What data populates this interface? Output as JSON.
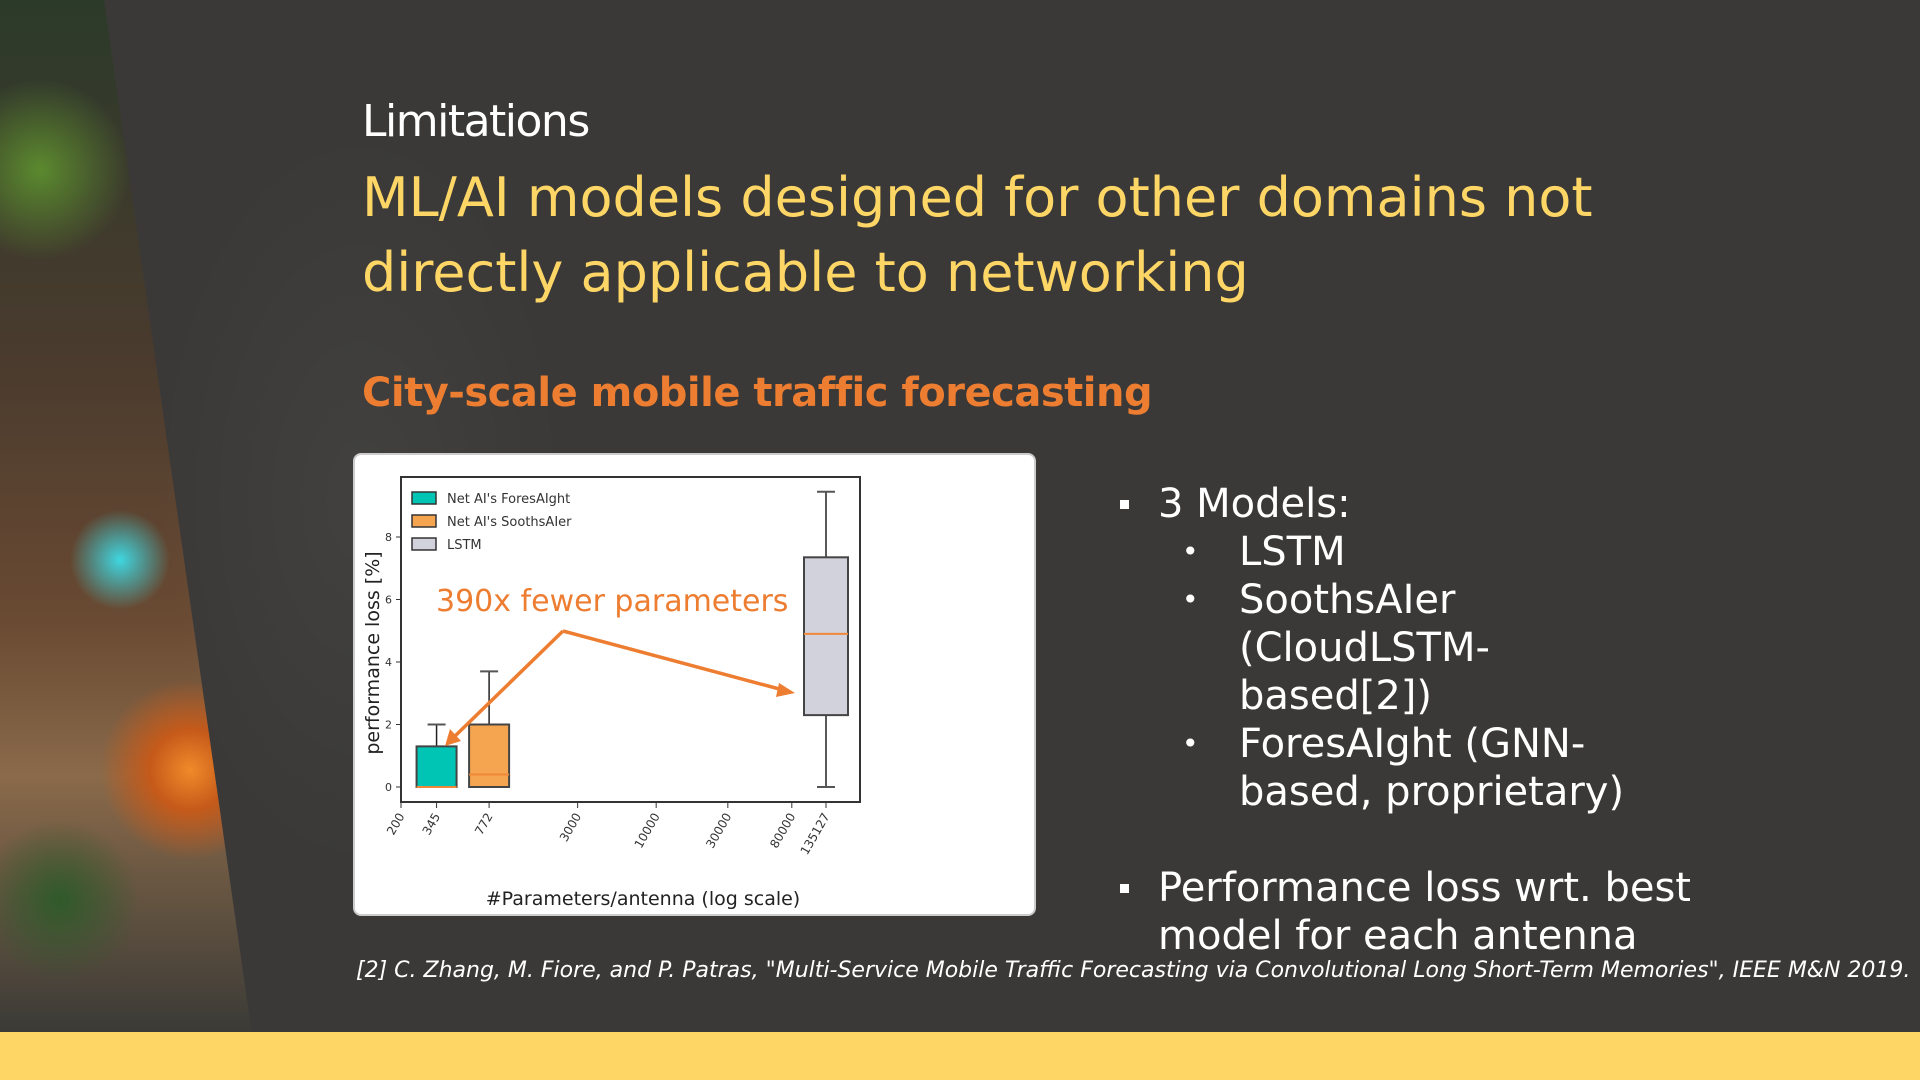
{
  "title": "Limitations",
  "heading": "ML/AI models designed for other domains not directly applicable to networking",
  "subheading": "City-scale mobile traffic forecasting",
  "bullets": {
    "models_label": "3 Models:",
    "models": [
      "LSTM",
      "SoothsAIer (CloudLSTM-based[2])",
      "ForesAIght (GNN-based, proprietary)"
    ],
    "perf": "Performance loss wrt. best model for each antenna"
  },
  "citation": "[2] C. Zhang, M. Fiore, and P. Patras, \"Multi-Service Mobile Traffic Forecasting via Convolutional Long Short-Term Memories\",  IEEE M&N 2019.",
  "colors": {
    "accent_yellow": "#fdd666",
    "accent_orange": "#ed7d31"
  },
  "chart_data": {
    "type": "box",
    "xlabel": "#Parameters/antenna (log scale)",
    "ylabel": "performance loss [%]",
    "xscale": "log",
    "xlim": [
      200,
      135127
    ],
    "ylim": [
      -0.5,
      9.8
    ],
    "xticks": [
      200,
      345,
      772,
      3000,
      10000,
      30000,
      80000,
      135127
    ],
    "xtick_labels": [
      "200",
      "345",
      "772",
      "3000",
      "10000",
      "30000",
      "80000",
      "135127"
    ],
    "yticks": [
      0,
      2,
      4,
      6,
      8
    ],
    "ytick_labels": [
      "0",
      "2",
      "4",
      "6",
      "8"
    ],
    "legend_position": "top-left",
    "series": [
      {
        "name": "Net AI's ForesAIght",
        "x": 345,
        "whisker_low": 0,
        "q1": 0,
        "median": 0,
        "q3": 1.3,
        "whisker_high": 2.0,
        "color": "#00c4b4"
      },
      {
        "name": "Net AI's SoothsAIer",
        "x": 772,
        "whisker_low": 0,
        "q1": 0,
        "median": 0.4,
        "q3": 2.0,
        "whisker_high": 3.7,
        "color": "#f5a54f"
      },
      {
        "name": "LSTM",
        "x": 135127,
        "whisker_low": 0,
        "q1": 2.3,
        "median": 4.9,
        "q3": 7.35,
        "whisker_high": 9.45,
        "color": "#d2d2dc"
      }
    ],
    "annotation": "390x fewer parameters",
    "annotation_color": "#ed7d31"
  }
}
